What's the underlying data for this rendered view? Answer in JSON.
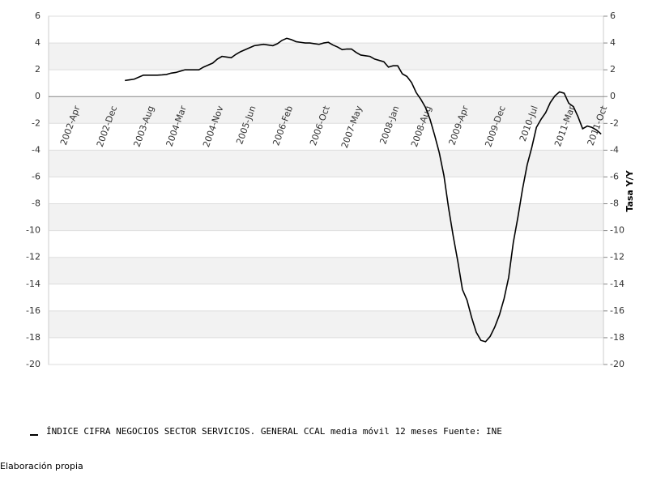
{
  "chart_data": {
    "type": "line",
    "y2label": "Tasa Y/Y",
    "source": "Elaboración propia",
    "categories": [
      null,
      null,
      null,
      "2002-Apr",
      null,
      null,
      null,
      null,
      null,
      null,
      null,
      "2002-Dec",
      null,
      null,
      null,
      null,
      null,
      null,
      null,
      "2003-Aug",
      null,
      null,
      null,
      null,
      null,
      null,
      "2004-Mar",
      null,
      null,
      null,
      null,
      null,
      null,
      null,
      "2004-Nov",
      null,
      null,
      null,
      null,
      null,
      null,
      "2005-Jun",
      null,
      null,
      null,
      null,
      null,
      null,
      null,
      "2006-Feb",
      null,
      null,
      null,
      null,
      null,
      null,
      null,
      "2006-Oct",
      null,
      null,
      null,
      null,
      null,
      null,
      "2007-May",
      null,
      null,
      null,
      null,
      null,
      null,
      null,
      "2008-Jan",
      null,
      null,
      null,
      null,
      null,
      null,
      "2008-Aug",
      null,
      null,
      null,
      null,
      null,
      null,
      null,
      "2009-Apr",
      null,
      null,
      null,
      null,
      null,
      null,
      null,
      "2009-Dec",
      null,
      null,
      null,
      null,
      null,
      null,
      "2010-Jul",
      null,
      null,
      null,
      null,
      null,
      null,
      null,
      "2011-Mar",
      null,
      null,
      null,
      null,
      null,
      null,
      "2011-Oct",
      null,
      null
    ],
    "series": [
      {
        "name": "ÍNDICE CIFRA NEGOCIOS SECTOR SERVICIOS. GENERAL CCAL media móvil 12 meses  Fuente: INE",
        "color": "#000000",
        "values": [
          null,
          null,
          null,
          null,
          null,
          null,
          null,
          null,
          null,
          null,
          null,
          null,
          null,
          null,
          null,
          null,
          1.2,
          1.25,
          1.3,
          1.45,
          1.6,
          1.6,
          1.6,
          1.6,
          1.62,
          1.65,
          1.75,
          1.8,
          1.9,
          2.0,
          2.0,
          2.0,
          2.0,
          2.2,
          2.35,
          2.5,
          2.8,
          3.0,
          2.95,
          2.9,
          3.15,
          3.35,
          3.5,
          3.65,
          3.8,
          3.85,
          3.9,
          3.85,
          3.8,
          3.95,
          4.2,
          4.35,
          4.25,
          4.1,
          4.05,
          4.0,
          4.0,
          3.95,
          3.9,
          4.0,
          4.05,
          3.85,
          3.7,
          3.5,
          3.55,
          3.55,
          3.3,
          3.1,
          3.05,
          3.0,
          2.8,
          2.7,
          2.6,
          2.2,
          2.3,
          2.3,
          1.7,
          1.5,
          1.05,
          0.3,
          -0.2,
          -0.8,
          -1.7,
          -2.9,
          -4.2,
          -5.9,
          -8.3,
          -10.4,
          -12.3,
          -14.4,
          -15.2,
          -16.5,
          -17.6,
          -18.2,
          -18.3,
          -17.9,
          -17.2,
          -16.3,
          -15.1,
          -13.5,
          -10.9,
          -9.0,
          -6.9,
          -5.1,
          -3.8,
          -2.3,
          -1.7,
          -1.2,
          -0.45,
          0.05,
          0.35,
          0.25,
          -0.5,
          -0.75,
          -1.5,
          -2.4,
          -2.2,
          -2.3,
          -2.5,
          -2.8
        ]
      }
    ],
    "ylim": [
      -20,
      6
    ],
    "yticks": [
      -20,
      -18,
      -16,
      -14,
      -12,
      -10,
      -8,
      -6,
      -4,
      -2,
      0,
      2,
      4,
      6
    ],
    "y2lim": [
      -20,
      6
    ],
    "y2ticks": [
      -20,
      -18,
      -16,
      -14,
      -12,
      -10,
      -8,
      -6,
      -4,
      -2,
      0,
      2,
      4,
      6
    ],
    "grid": true
  }
}
